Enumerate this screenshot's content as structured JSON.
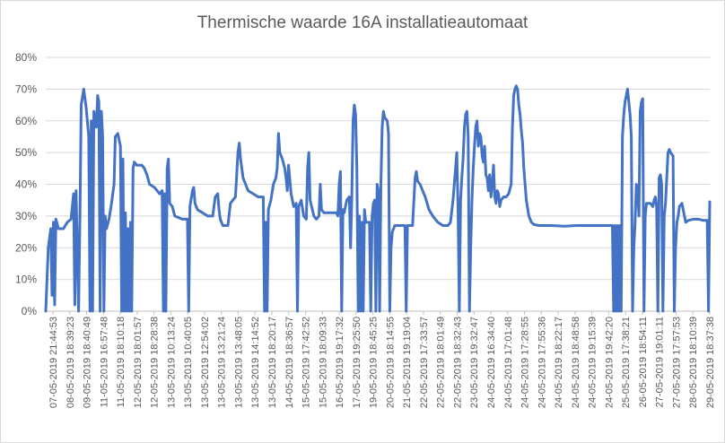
{
  "chart_data": {
    "type": "line",
    "title": "Thermische waarde 16A installatieautomaat",
    "xlabel": "",
    "ylabel": "",
    "ylim": [
      0,
      80
    ],
    "yticks": [
      "0%",
      "10%",
      "20%",
      "30%",
      "40%",
      "50%",
      "60%",
      "70%",
      "80%"
    ],
    "grid": true,
    "legend": "none",
    "line_color": "#4472c4",
    "x_tick_labels": [
      "07-05-2019 21:44:53",
      "08-05-2019 18:39:23",
      "09-05-2019 18:40:49",
      "11-05-2019 16:57:48",
      "11-05-2019 18:10:18",
      "12-05-2019 18:01:57",
      "12-05-2019 18:28:38",
      "13-05-2019 10:13:24",
      "13-05-2019 10:40:05",
      "13-05-2019 12:54:02",
      "13-05-2019 13:21:24",
      "13-05-2019 13:48:05",
      "13-05-2019 14:14:52",
      "13-05-2019 18:20:17",
      "14-05-2019 18:36:57",
      "15-05-2019 17:42:52",
      "15-05-2019 18:09:33",
      "16-05-2019 19:17:32",
      "17-05-2019 19:25:50",
      "19-05-2019 18:45:25",
      "20-05-2019 18:14:55",
      "21-05-2019 19:19:04",
      "22-05-2019 17:33:57",
      "22-05-2019 18:01:49",
      "22-05-2019 18:32:43",
      "23-05-2019 19:32:47",
      "24-05-2019 16:34:40",
      "24-05-2019 17:01:48",
      "24-05-2019 17:28:55",
      "24-05-2019 17:55:36",
      "24-05-2019 18:22:17",
      "24-05-2019 18:48:58",
      "24-05-2019 19:15:39",
      "24-05-2019 19:42:20",
      "25-05-2019 17:38:21",
      "26-05-2019 18:54:11",
      "27-05-2019 19:01:11",
      "27-05-2019 17:57:53",
      "28-05-2019 18:10:39",
      "29-05-2019 18:37:38"
    ],
    "series": [
      {
        "values": [
          [
            0,
            0
          ],
          [
            2,
            20
          ],
          [
            4,
            26
          ],
          [
            5,
            5
          ],
          [
            6,
            28
          ],
          [
            7,
            2
          ],
          [
            8,
            29
          ],
          [
            10,
            26
          ],
          [
            14,
            26
          ],
          [
            17,
            28
          ],
          [
            20,
            29
          ],
          [
            22,
            37
          ],
          [
            23,
            2
          ],
          [
            24,
            38
          ],
          [
            26,
            0
          ],
          [
            27,
            30
          ],
          [
            28,
            65
          ],
          [
            30,
            70
          ],
          [
            32,
            64
          ],
          [
            34,
            55
          ],
          [
            35,
            0
          ],
          [
            36,
            60
          ],
          [
            37,
            0
          ],
          [
            38,
            63
          ],
          [
            40,
            58
          ],
          [
            41,
            68
          ],
          [
            42,
            66
          ],
          [
            43,
            0
          ],
          [
            44,
            63
          ],
          [
            45,
            55
          ],
          [
            46,
            0
          ],
          [
            47,
            30
          ],
          [
            48,
            26
          ],
          [
            50,
            29
          ],
          [
            52,
            34
          ],
          [
            54,
            40
          ],
          [
            55,
            55
          ],
          [
            57,
            56
          ],
          [
            59,
            52
          ],
          [
            60,
            0
          ],
          [
            61,
            48
          ],
          [
            62,
            0
          ],
          [
            63,
            31
          ],
          [
            64,
            0
          ],
          [
            65,
            26
          ],
          [
            66,
            0
          ],
          [
            67,
            28
          ],
          [
            68,
            0
          ],
          [
            69,
            45
          ],
          [
            70,
            47
          ],
          [
            72,
            46
          ],
          [
            76,
            46
          ],
          [
            78,
            45
          ],
          [
            80,
            43
          ],
          [
            82,
            40
          ],
          [
            86,
            39
          ],
          [
            88,
            38
          ],
          [
            90,
            37
          ],
          [
            92,
            38
          ],
          [
            93,
            0
          ],
          [
            94,
            37
          ],
          [
            95,
            0
          ],
          [
            96,
            45
          ],
          [
            97,
            48
          ],
          [
            98,
            34
          ],
          [
            100,
            33
          ],
          [
            102,
            30
          ],
          [
            108,
            29
          ],
          [
            112,
            29
          ],
          [
            113,
            0
          ],
          [
            114,
            33
          ],
          [
            116,
            38
          ],
          [
            117,
            39
          ],
          [
            118,
            34
          ],
          [
            120,
            32
          ],
          [
            124,
            31
          ],
          [
            128,
            30
          ],
          [
            132,
            30
          ],
          [
            134,
            36
          ],
          [
            136,
            37
          ],
          [
            137,
            32
          ],
          [
            138,
            29
          ],
          [
            140,
            27
          ],
          [
            144,
            27
          ],
          [
            146,
            34
          ],
          [
            150,
            36
          ],
          [
            152,
            50
          ],
          [
            153,
            53
          ],
          [
            154,
            48
          ],
          [
            156,
            42
          ],
          [
            158,
            40
          ],
          [
            160,
            38
          ],
          [
            164,
            37
          ],
          [
            168,
            36
          ],
          [
            172,
            36
          ],
          [
            173,
            0
          ],
          [
            174,
            28
          ],
          [
            175,
            0
          ],
          [
            176,
            32
          ],
          [
            178,
            35
          ],
          [
            180,
            40
          ],
          [
            182,
            42
          ],
          [
            183,
            45
          ],
          [
            184,
            56
          ],
          [
            185,
            50
          ],
          [
            187,
            48
          ],
          [
            189,
            45
          ],
          [
            190,
            42
          ],
          [
            191,
            38
          ],
          [
            192,
            46
          ],
          [
            194,
            37
          ],
          [
            196,
            33
          ],
          [
            198,
            34
          ],
          [
            199,
            0
          ],
          [
            200,
            33
          ],
          [
            202,
            35
          ],
          [
            204,
            30
          ],
          [
            206,
            29
          ],
          [
            207,
            45
          ],
          [
            208,
            50
          ],
          [
            209,
            35
          ],
          [
            212,
            30
          ],
          [
            214,
            29
          ],
          [
            216,
            30
          ],
          [
            217,
            40
          ],
          [
            218,
            32
          ],
          [
            220,
            31
          ],
          [
            228,
            31
          ],
          [
            230,
            31
          ],
          [
            231,
            30
          ],
          [
            232,
            40
          ],
          [
            233,
            44
          ],
          [
            234,
            0
          ],
          [
            235,
            32
          ],
          [
            236,
            31
          ],
          [
            238,
            35
          ],
          [
            240,
            36
          ],
          [
            241,
            20
          ],
          [
            242,
            36
          ],
          [
            243,
            60
          ],
          [
            244,
            65
          ],
          [
            245,
            62
          ],
          [
            246,
            45
          ],
          [
            247,
            0
          ],
          [
            248,
            30
          ],
          [
            249,
            0
          ],
          [
            250,
            28
          ],
          [
            251,
            0
          ],
          [
            252,
            32
          ],
          [
            253,
            28
          ],
          [
            256,
            28
          ],
          [
            257,
            0
          ],
          [
            258,
            30
          ],
          [
            259,
            34
          ],
          [
            260,
            35
          ],
          [
            261,
            0
          ],
          [
            262,
            40
          ],
          [
            263,
            38
          ],
          [
            264,
            0
          ],
          [
            265,
            40
          ],
          [
            266,
            58
          ],
          [
            267,
            63
          ],
          [
            268,
            61
          ],
          [
            270,
            60
          ],
          [
            271,
            56
          ],
          [
            272,
            0
          ],
          [
            273,
            20
          ],
          [
            274,
            25
          ],
          [
            276,
            27
          ],
          [
            280,
            27
          ],
          [
            284,
            27
          ],
          [
            285,
            0
          ],
          [
            286,
            27
          ],
          [
            288,
            27
          ],
          [
            290,
            27
          ],
          [
            292,
            42
          ],
          [
            293,
            44
          ],
          [
            294,
            41
          ],
          [
            296,
            40
          ],
          [
            298,
            38
          ],
          [
            300,
            36
          ],
          [
            303,
            32
          ],
          [
            306,
            30
          ],
          [
            310,
            28
          ],
          [
            314,
            27
          ],
          [
            318,
            27
          ],
          [
            320,
            28
          ],
          [
            322,
            35
          ],
          [
            324,
            45
          ],
          [
            325,
            50
          ],
          [
            326,
            32
          ],
          [
            327,
            0
          ],
          [
            328,
            35
          ],
          [
            329,
            42
          ],
          [
            330,
            48
          ],
          [
            331,
            58
          ],
          [
            332,
            62
          ],
          [
            333,
            63
          ],
          [
            334,
            55
          ],
          [
            335,
            0
          ],
          [
            336,
            20
          ],
          [
            337,
            35
          ],
          [
            338,
            45
          ],
          [
            339,
            52
          ],
          [
            340,
            58
          ],
          [
            341,
            60
          ],
          [
            342,
            52
          ],
          [
            343,
            56
          ],
          [
            344,
            55
          ],
          [
            345,
            49
          ],
          [
            346,
            47
          ],
          [
            347,
            52
          ],
          [
            348,
            43
          ],
          [
            349,
            42
          ],
          [
            350,
            38
          ],
          [
            351,
            43
          ],
          [
            352,
            36
          ],
          [
            353,
            40
          ],
          [
            354,
            46
          ],
          [
            355,
            36
          ],
          [
            356,
            34
          ],
          [
            357,
            38
          ],
          [
            358,
            37
          ],
          [
            359,
            33
          ],
          [
            360,
            35
          ],
          [
            362,
            36
          ],
          [
            364,
            36
          ],
          [
            366,
            37
          ],
          [
            368,
            40
          ],
          [
            369,
            58
          ],
          [
            370,
            68
          ],
          [
            371,
            70
          ],
          [
            372,
            71
          ],
          [
            373,
            70
          ],
          [
            374,
            65
          ],
          [
            375,
            62
          ],
          [
            376,
            57
          ],
          [
            377,
            53
          ],
          [
            378,
            45
          ],
          [
            380,
            35
          ],
          [
            382,
            30
          ],
          [
            384,
            28
          ],
          [
            386,
            27.3
          ],
          [
            390,
            27
          ],
          [
            400,
            27
          ],
          [
            410,
            26.8
          ],
          [
            420,
            27
          ],
          [
            430,
            27
          ],
          [
            440,
            27
          ],
          [
            448,
            27
          ],
          [
            449,
            0
          ],
          [
            450,
            27
          ],
          [
            451,
            0
          ],
          [
            452,
            27
          ],
          [
            453,
            0
          ],
          [
            454,
            27
          ],
          [
            455,
            0
          ],
          [
            456,
            55
          ],
          [
            457,
            62
          ],
          [
            458,
            66
          ],
          [
            459,
            68
          ],
          [
            460,
            70
          ],
          [
            461,
            66
          ],
          [
            462,
            62
          ],
          [
            463,
            55
          ],
          [
            464,
            0
          ],
          [
            465,
            20
          ],
          [
            466,
            28
          ],
          [
            467,
            40
          ],
          [
            468,
            38
          ],
          [
            469,
            30
          ],
          [
            470,
            63
          ],
          [
            471,
            66
          ],
          [
            472,
            67
          ],
          [
            473,
            0
          ],
          [
            474,
            30
          ],
          [
            475,
            34
          ],
          [
            478,
            34
          ],
          [
            480,
            33
          ],
          [
            481,
            35
          ],
          [
            482,
            36
          ],
          [
            483,
            33
          ],
          [
            484,
            0
          ],
          [
            485,
            42
          ],
          [
            486,
            43
          ],
          [
            487,
            40
          ],
          [
            488,
            0
          ],
          [
            489,
            30
          ],
          [
            490,
            34
          ],
          [
            492,
            50
          ],
          [
            493,
            51
          ],
          [
            494,
            50
          ],
          [
            496,
            49
          ],
          [
            497,
            0
          ],
          [
            498,
            20
          ],
          [
            499,
            28
          ],
          [
            500,
            30
          ],
          [
            501,
            33
          ],
          [
            503,
            34
          ],
          [
            505,
            30
          ],
          [
            506,
            28
          ],
          [
            508,
            28.6
          ],
          [
            512,
            29
          ],
          [
            516,
            29
          ],
          [
            520,
            28.6
          ],
          [
            523,
            28.6
          ],
          [
            524,
            0
          ],
          [
            525,
            34.5
          ]
        ]
      }
    ]
  }
}
